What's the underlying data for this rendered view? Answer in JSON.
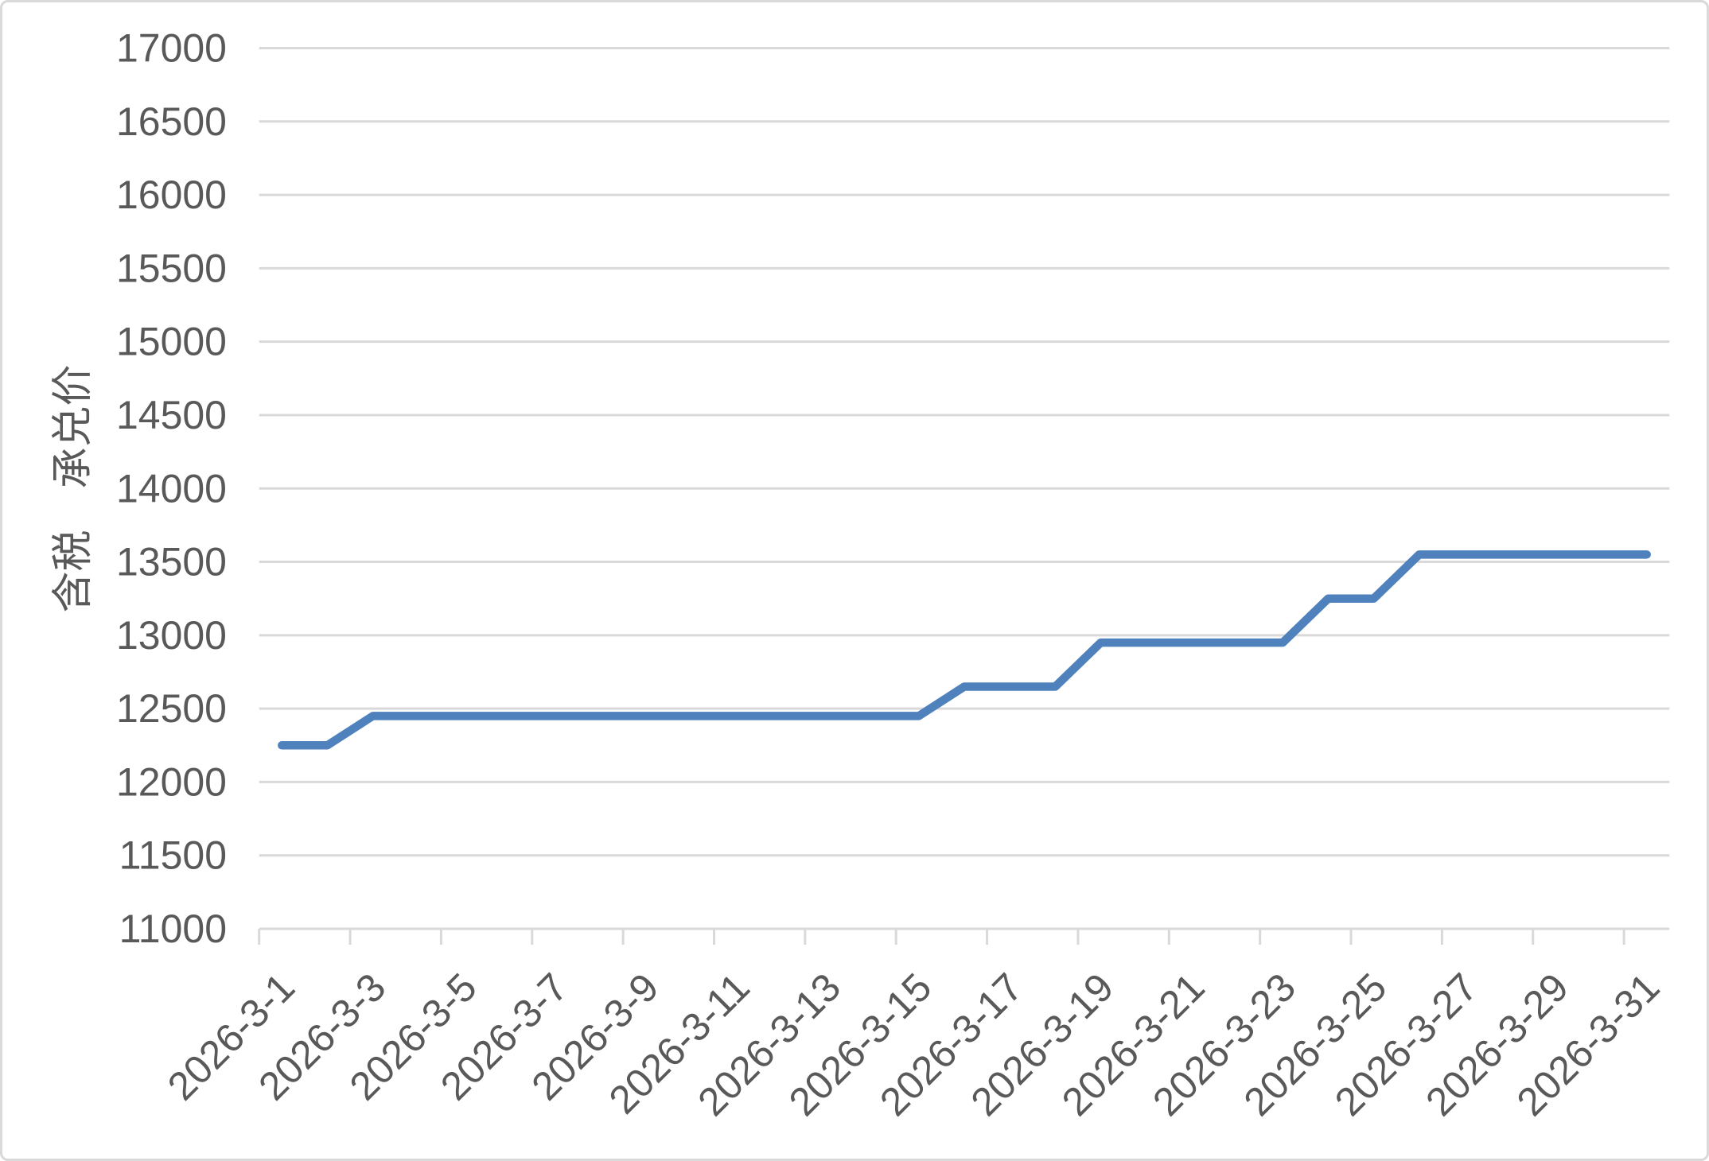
{
  "chart_data": {
    "type": "line",
    "title": "",
    "xlabel": "",
    "ylabel": "含税　承兑价",
    "categories": [
      "2026-3-1",
      "2026-3-2",
      "2026-3-3",
      "2026-3-4",
      "2026-3-5",
      "2026-3-6",
      "2026-3-7",
      "2026-3-8",
      "2026-3-9",
      "2026-3-10",
      "2026-3-11",
      "2026-3-12",
      "2026-3-13",
      "2026-3-14",
      "2026-3-15",
      "2026-3-16",
      "2026-3-17",
      "2026-3-18",
      "2026-3-19",
      "2026-3-20",
      "2026-3-21",
      "2026-3-22",
      "2026-3-23",
      "2026-3-24",
      "2026-3-25",
      "2026-3-26",
      "2026-3-27",
      "2026-3-28",
      "2026-3-29",
      "2026-3-30",
      "2026-3-31"
    ],
    "values": [
      12250,
      12250,
      12450,
      12450,
      12450,
      12450,
      12450,
      12450,
      12450,
      12450,
      12450,
      12450,
      12450,
      12450,
      12450,
      12650,
      12650,
      12650,
      12950,
      12950,
      12950,
      12950,
      12950,
      13250,
      13250,
      13550,
      13550,
      13550,
      13550,
      13550,
      13550
    ],
    "visible_x_tick_labels": [
      "2026-3-1",
      "2026-3-3",
      "2026-3-5",
      "2026-3-7",
      "2026-3-9",
      "2026-3-11",
      "2026-3-13",
      "2026-3-15",
      "2026-3-17",
      "2026-3-19",
      "2026-3-21",
      "2026-3-23",
      "2026-3-25",
      "2026-3-27",
      "2026-3-29",
      "2026-3-31"
    ],
    "ylim": [
      11000,
      17000
    ],
    "ytick_step": 500,
    "x_label_interval": 2,
    "grid": true,
    "legend": null,
    "colors": {
      "series": "#4F81BD",
      "gridline": "#D9D9D9",
      "axis": "#D9D9D9",
      "text": "#595959"
    }
  }
}
